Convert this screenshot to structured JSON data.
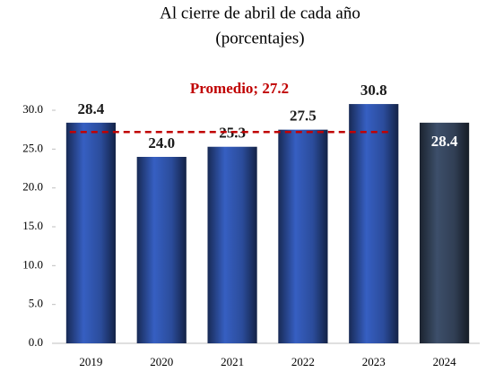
{
  "chart_data": {
    "type": "bar",
    "title": "Al cierre de abril de cada año",
    "subtitle": "(porcentajes)",
    "categories": [
      "2019",
      "2020",
      "2021",
      "2022",
      "2023",
      "2024"
    ],
    "values": [
      28.4,
      24.0,
      25.3,
      27.5,
      30.8,
      28.4
    ],
    "value_labels": [
      "28.4",
      "24.0",
      "25.3",
      "27.5",
      "30.8",
      "28.4"
    ],
    "value_label_inside": [
      false,
      false,
      false,
      false,
      false,
      true
    ],
    "colors": [
      "#2b4c9b",
      "#2b4c9b",
      "#2b4c9b",
      "#2b4c9b",
      "#2b4c9b",
      "#313f55"
    ],
    "average": {
      "label": "Promedio; 27.2",
      "value": 27.2,
      "color": "#c00000"
    },
    "ylim": [
      0,
      35
    ],
    "yticks": [
      {
        "value": 0,
        "label": "0.0"
      },
      {
        "value": 5,
        "label": "5.0"
      },
      {
        "value": 10,
        "label": "10.0"
      },
      {
        "value": 15,
        "label": "15.0"
      },
      {
        "value": 20,
        "label": "20.0"
      },
      {
        "value": 25,
        "label": "25.0"
      },
      {
        "value": 30,
        "label": "30.0"
      }
    ],
    "grid": false
  }
}
